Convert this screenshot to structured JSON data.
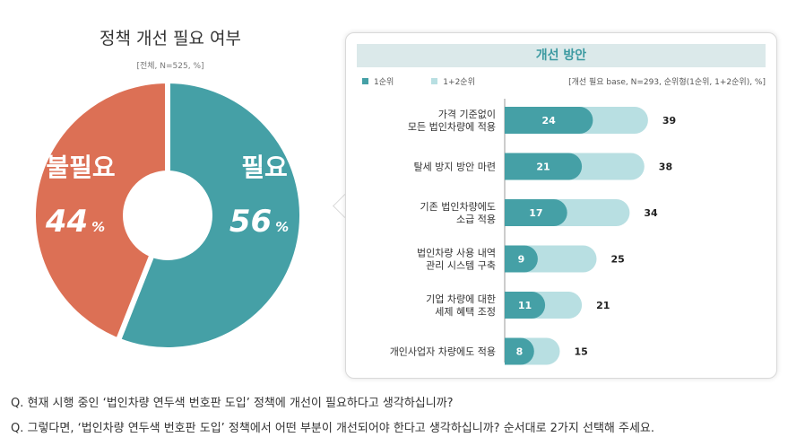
{
  "left_chart": {
    "title": "정책 개선 필요 여부",
    "subtitle": "[전체, N=525, %]"
  },
  "right_panel": {
    "header": "개선 방안",
    "legend": [
      "1순위",
      "1+2순위"
    ],
    "base_note": "[개선 필요 base, N=293, 순위형(1순위, 1+2순위), %]"
  },
  "colors": {
    "need": "#45a0a6",
    "no_need": "#dc7055",
    "rank1": "#45a0a6",
    "rank12": "#b8dfe2"
  },
  "chart_data": [
    {
      "type": "pie",
      "title": "정책 개선 필요 여부",
      "subtitle": "[전체, N=525, %]",
      "slices": [
        {
          "label": "필요",
          "value": 56,
          "display": "56"
        },
        {
          "label": "불필요",
          "value": 44,
          "display": "44"
        }
      ],
      "unit": "%"
    },
    {
      "type": "bar",
      "orientation": "horizontal",
      "title": "개선 방안",
      "categories": [
        [
          "가격 기준없이",
          "모든 법인차량에 적용"
        ],
        [
          "탈세 방지 방안 마련"
        ],
        [
          "기존 법인차량에도",
          "소급 적용"
        ],
        [
          "법인차량 사용 내역",
          "관리 시스템 구축"
        ],
        [
          "기업 차량에 대한",
          "세제 혜택 조정"
        ],
        [
          "개인사업자 차량에도 적용"
        ]
      ],
      "series": [
        {
          "name": "1순위",
          "values": [
            24,
            21,
            17,
            9,
            11,
            8
          ]
        },
        {
          "name": "1+2순위",
          "values": [
            39,
            38,
            34,
            25,
            21,
            15
          ]
        }
      ],
      "legend_position": "top-left"
    }
  ],
  "questions": [
    "Q. 현재 시행 중인 ‘법인차량 연두색 번호판 도입’ 정책에 개선이 필요하다고 생각하십니까?",
    "Q. 그렇다면, ‘법인차량 연두색 번호판 도입’ 정책에서 어떤 부분이 개선되어야 한다고 생각하십니까? 순서대로 2가지 선택해 주세요."
  ]
}
